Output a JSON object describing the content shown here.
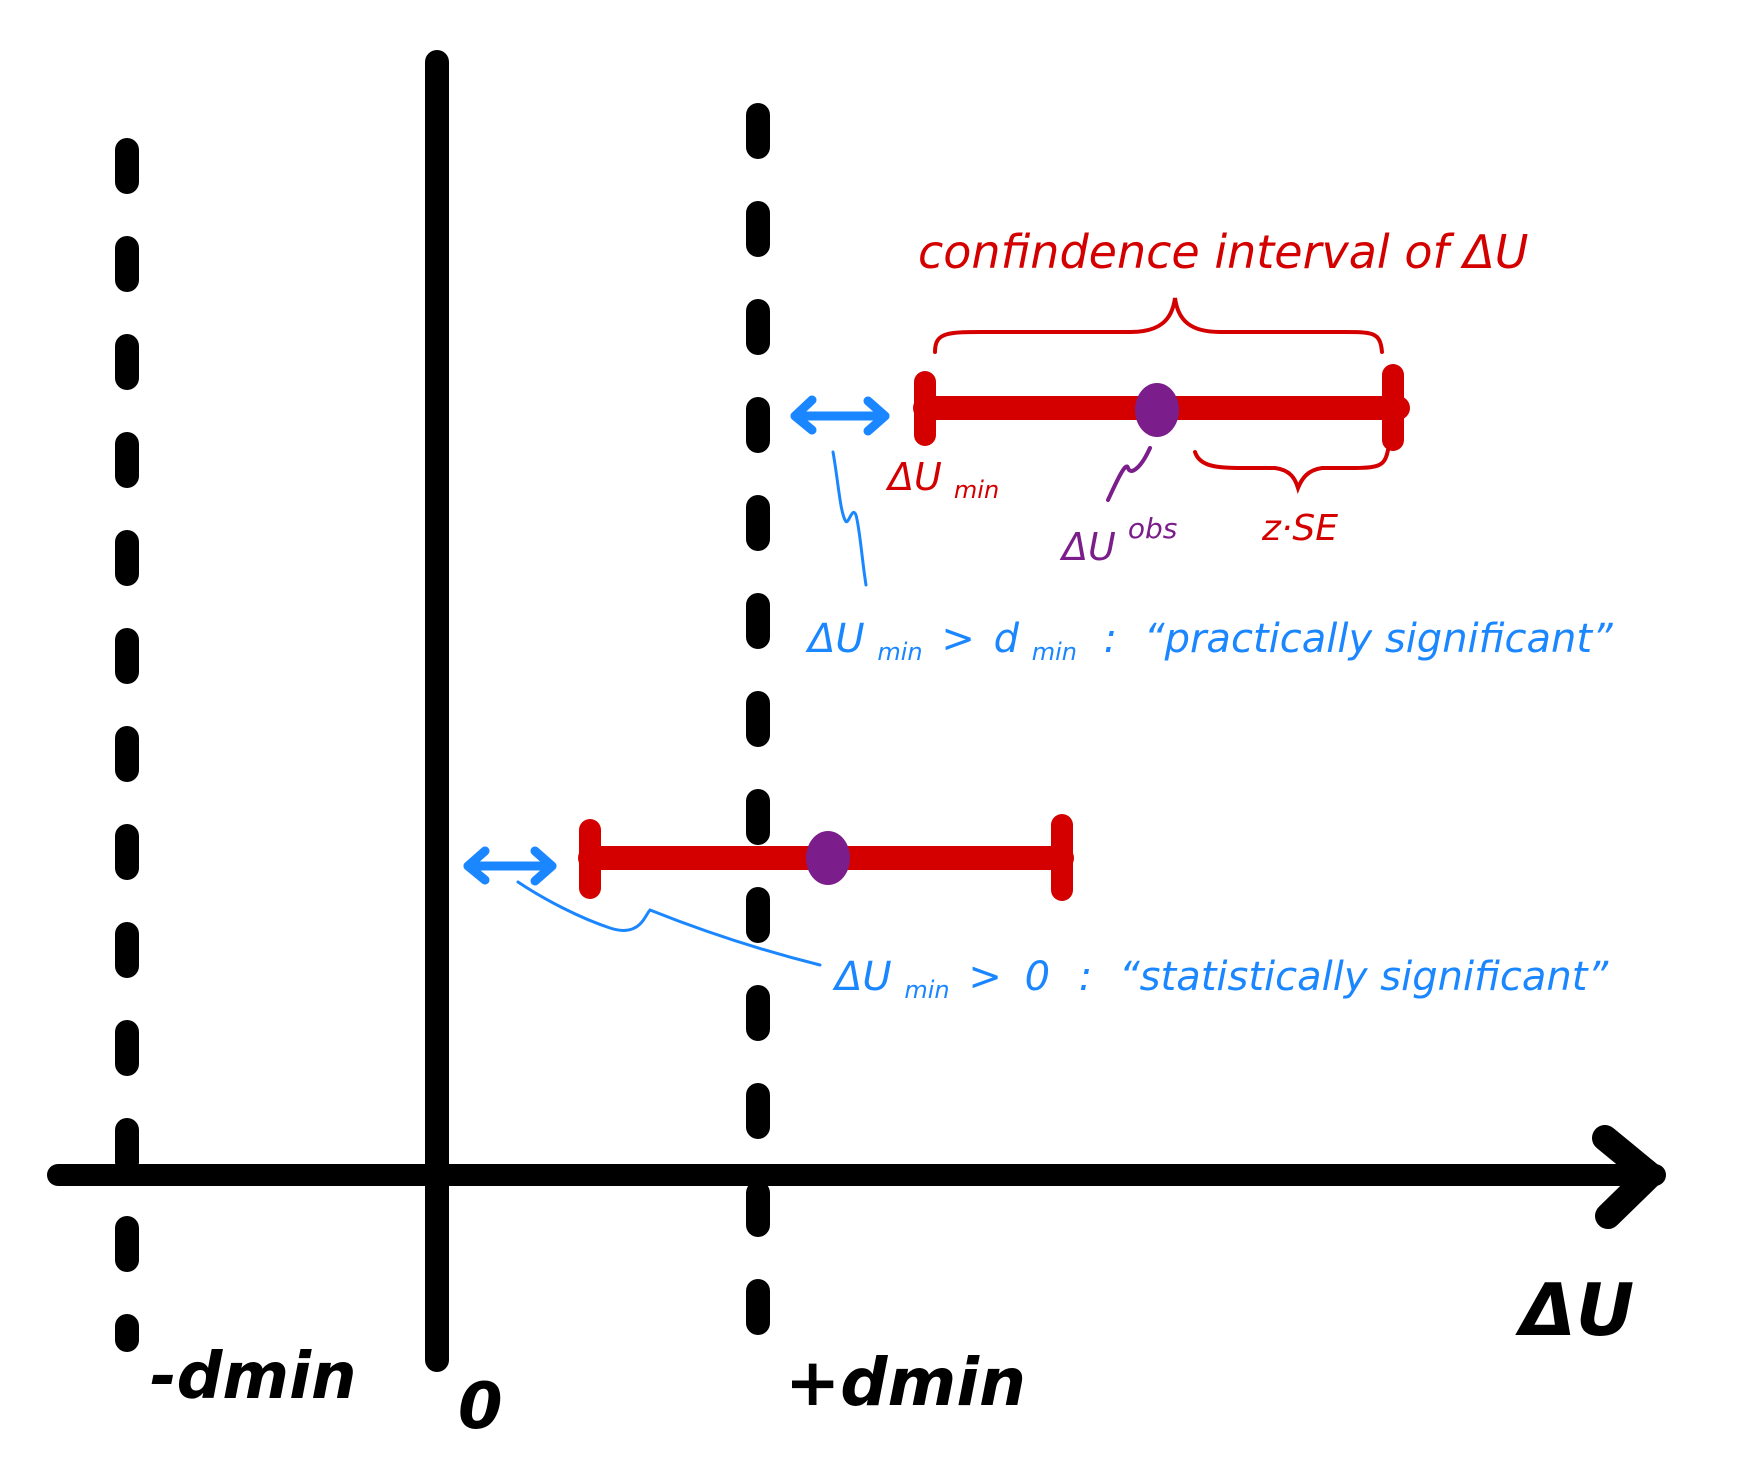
{
  "colors": {
    "axis": "#000000",
    "interval": "#d40000",
    "estimate": "#7b1d8a",
    "annotation": "#1a86ff"
  },
  "axis": {
    "x_label": "ΔU",
    "ticks": {
      "neg_dmin": "-dmin",
      "zero": "0",
      "pos_dmin": "+dmin"
    }
  },
  "top_interval": {
    "title": "confindence interval of ΔU",
    "lower_label_main": "ΔU",
    "lower_label_sub": "min",
    "estimate_label_main": "ΔU",
    "estimate_label_sup": "obs",
    "half_width_label": "z·SE"
  },
  "annotations": {
    "practical": {
      "lhs_main": "ΔU",
      "lhs_sub": "min",
      "op": ">",
      "rhs_main": "d",
      "rhs_sub": "min",
      "colon": ":",
      "text": "“practically significant”"
    },
    "statistical": {
      "lhs_main": "ΔU",
      "lhs_sub": "min",
      "op": ">",
      "rhs": "0",
      "colon": ":",
      "text": "“statistically significant”"
    }
  }
}
